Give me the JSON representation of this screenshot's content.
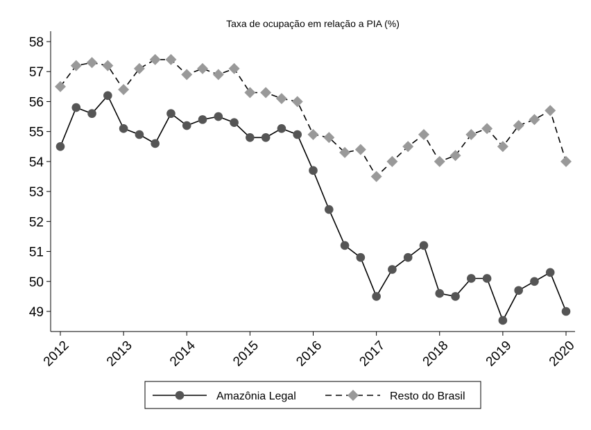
{
  "chart_data": {
    "type": "line",
    "title": "Taxa de ocupação em relação a PIA (%)",
    "xlabel": "",
    "ylabel": "",
    "xlim": [
      2012,
      2020
    ],
    "ylim": [
      48.4,
      58.3
    ],
    "xticks": [
      "2012",
      "2013",
      "2014",
      "2015",
      "2016",
      "2017",
      "2018",
      "2019",
      "2020"
    ],
    "yticks": [
      49,
      50,
      51,
      52,
      53,
      54,
      55,
      56,
      57,
      58
    ],
    "grid": "vertical at year ticks",
    "legend_position": "bottom",
    "x": [
      2012.0,
      2012.25,
      2012.5,
      2012.75,
      2013.0,
      2013.25,
      2013.5,
      2013.75,
      2014.0,
      2014.25,
      2014.5,
      2014.75,
      2015.0,
      2015.25,
      2015.5,
      2015.75,
      2016.0,
      2016.25,
      2016.5,
      2016.75,
      2017.0,
      2017.25,
      2017.5,
      2017.75,
      2018.0,
      2018.25,
      2018.5,
      2018.75,
      2019.0,
      2019.25,
      2019.5,
      2019.75,
      2020.0
    ],
    "series": [
      {
        "name": "Amazônia Legal",
        "style": "solid",
        "marker": "circle",
        "color": "#555555",
        "values": [
          54.5,
          55.8,
          55.6,
          56.2,
          55.1,
          54.9,
          54.6,
          55.6,
          55.2,
          55.4,
          55.5,
          55.3,
          54.8,
          54.8,
          55.1,
          54.9,
          53.7,
          52.4,
          51.2,
          50.8,
          49.5,
          50.4,
          50.8,
          51.2,
          49.6,
          49.5,
          50.1,
          50.1,
          48.7,
          49.7,
          50.0,
          50.3,
          49.0
        ]
      },
      {
        "name": "Resto do Brasil",
        "style": "dashed",
        "marker": "diamond",
        "color": "#999999",
        "values": [
          56.5,
          57.2,
          57.3,
          57.2,
          56.4,
          57.1,
          57.4,
          57.4,
          56.9,
          57.1,
          56.9,
          57.1,
          56.3,
          56.3,
          56.1,
          56.0,
          54.9,
          54.8,
          54.3,
          54.4,
          53.5,
          54.0,
          54.5,
          54.9,
          54.0,
          54.2,
          54.9,
          55.1,
          54.5,
          55.2,
          55.4,
          55.7,
          54.0
        ]
      }
    ]
  }
}
